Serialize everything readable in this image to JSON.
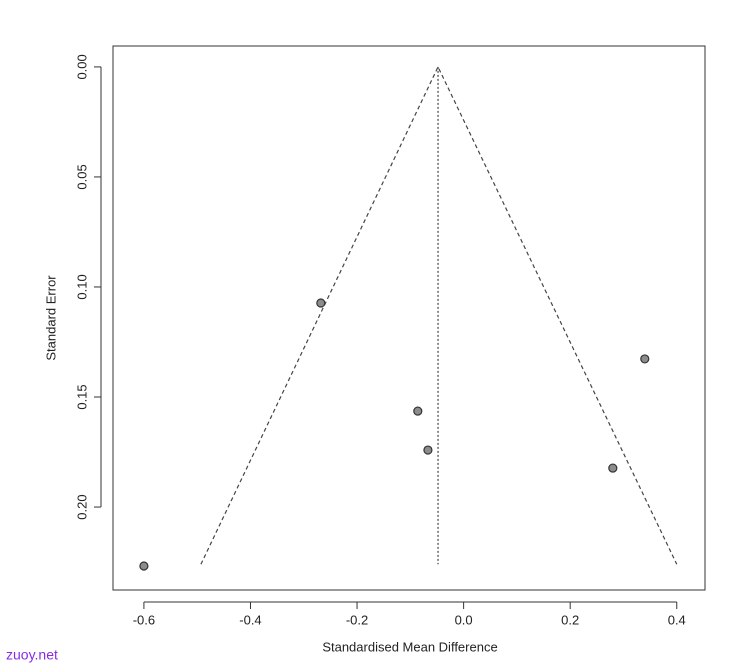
{
  "chart_data": {
    "type": "scatter",
    "x_label": "Standardised Mean Difference",
    "y_label": "Standard Error",
    "watermark": "zuoy.net",
    "x": [
      -0.6,
      -0.268,
      -0.086,
      -0.067,
      0.34,
      0.28
    ],
    "values": [
      0.2268,
      0.1073,
      0.1564,
      0.1741,
      0.1327,
      0.1823
    ],
    "color": "#8c8c8c",
    "xlim": [
      -0.658,
      0.453
    ],
    "ylim": [
      -0.0095,
      0.2377
    ],
    "y_inverted": true,
    "xticks": [
      -0.6,
      -0.4,
      -0.2,
      {
        "value": 0,
        "label": "0.0"
      },
      0.2,
      0.4
    ],
    "yticks": [
      {
        "value": 0,
        "label": "0.00"
      },
      0.05,
      {
        "value": 0.1,
        "label": "0.10"
      },
      0.15,
      {
        "value": 0.2,
        "label": "0.20"
      }
    ],
    "reference_lines": [
      {
        "x": [
          -0.493,
          -0.048,
          0.4
        ],
        "y": [
          0.226,
          0,
          0.226
        ],
        "dash": "4,3"
      },
      {
        "x": [
          -0.048,
          -0.048
        ],
        "y": [
          0,
          0.226
        ],
        "dash": "2,2"
      }
    ]
  }
}
